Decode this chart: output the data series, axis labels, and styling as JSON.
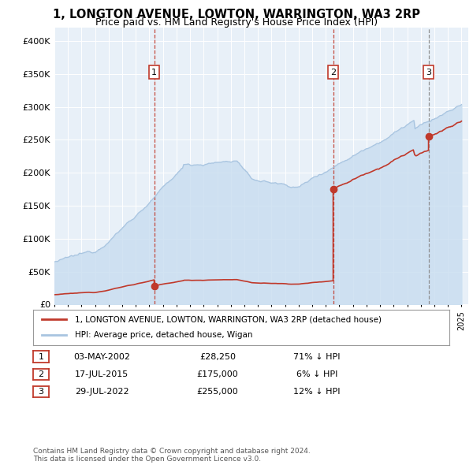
{
  "title": "1, LONGTON AVENUE, LOWTON, WARRINGTON, WA3 2RP",
  "subtitle": "Price paid vs. HM Land Registry's House Price Index (HPI)",
  "hpi_color": "#a8c4e0",
  "hpi_fill_color": "#c8ddf0",
  "price_color": "#c0392b",
  "plot_bg_color": "#e8f0f8",
  "grid_color": "#ffffff",
  "legend_label_price": "1, LONGTON AVENUE, LOWTON, WARRINGTON, WA3 2RP (detached house)",
  "legend_label_hpi": "HPI: Average price, detached house, Wigan",
  "sale_dates": [
    2002.35,
    2015.54,
    2022.57
  ],
  "sale_prices": [
    28250,
    175000,
    255000
  ],
  "sale_labels": [
    "1",
    "2",
    "3"
  ],
  "sale_table": [
    [
      "1",
      "03-MAY-2002",
      "£28,250",
      "71% ↓ HPI"
    ],
    [
      "2",
      "17-JUL-2015",
      "£175,000",
      "6% ↓ HPI"
    ],
    [
      "3",
      "29-JUL-2022",
      "£255,000",
      "12% ↓ HPI"
    ]
  ],
  "footer": "Contains HM Land Registry data © Crown copyright and database right 2024.\nThis data is licensed under the Open Government Licence v3.0.",
  "ylim": [
    0,
    420000
  ],
  "yticks": [
    0,
    50000,
    100000,
    150000,
    200000,
    250000,
    300000,
    350000,
    400000
  ],
  "ylabel_labels": [
    "£0",
    "£50K",
    "£100K",
    "£150K",
    "£200K",
    "£250K",
    "£300K",
    "£350K",
    "£400K"
  ],
  "xmin": 1995,
  "xmax": 2025.5
}
